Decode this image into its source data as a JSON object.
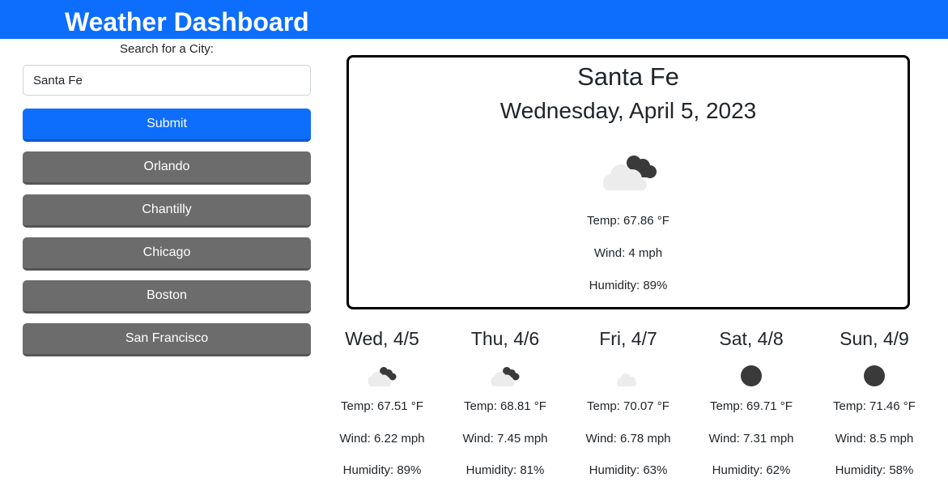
{
  "header": {
    "title": "Weather Dashboard"
  },
  "search": {
    "label": "Search for a City:",
    "value": "Santa Fe",
    "placeholder": "",
    "submit_label": "Submit"
  },
  "history": [
    "Orlando",
    "Chantilly",
    "Chicago",
    "Boston",
    "San Francisco"
  ],
  "current": {
    "city": "Santa Fe",
    "date": "Wednesday, April 5, 2023",
    "icon": "broken-clouds-icon",
    "temp": "Temp: 67.86 °F",
    "wind": "Wind: 4 mph",
    "humidity": "Humidity: 89%"
  },
  "forecast": [
    {
      "date": "Wed, 4/5",
      "icon": "broken-clouds-icon",
      "temp": "Temp: 67.51 °F",
      "wind": "Wind: 6.22 mph",
      "humidity": "Humidity: 89%"
    },
    {
      "date": "Thu, 4/6",
      "icon": "broken-clouds-icon",
      "temp": "Temp: 68.81 °F",
      "wind": "Wind: 7.45 mph",
      "humidity": "Humidity: 81%"
    },
    {
      "date": "Fri, 4/7",
      "icon": "few-clouds-icon",
      "temp": "Temp: 70.07 °F",
      "wind": "Wind: 6.78 mph",
      "humidity": "Humidity: 63%"
    },
    {
      "date": "Sat, 4/8",
      "icon": "clear-night-icon",
      "temp": "Temp: 69.71 °F",
      "wind": "Wind: 7.31 mph",
      "humidity": "Humidity: 62%"
    },
    {
      "date": "Sun, 4/9",
      "icon": "clear-night-icon",
      "temp": "Temp: 71.46 °F",
      "wind": "Wind: 8.5 mph",
      "humidity": "Humidity: 58%"
    }
  ],
  "colors": {
    "header": "#0d6efd",
    "primary_button": "#0d6efd",
    "history_button": "#6c6c6c"
  }
}
